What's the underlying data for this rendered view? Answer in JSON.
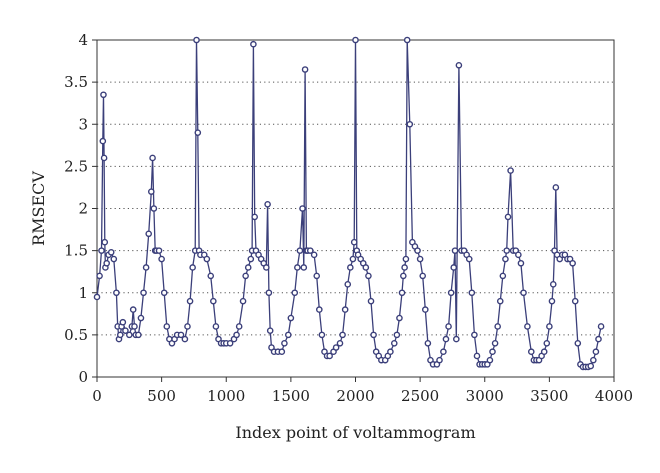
{
  "chart_data": {
    "type": "line",
    "title": "",
    "xlabel": "Index point of voltammogram",
    "ylabel": "RMSECV",
    "xlim": [
      0,
      4000
    ],
    "ylim": [
      0,
      4
    ],
    "xticks": [
      0,
      500,
      1000,
      1500,
      2000,
      2500,
      3000,
      3500,
      4000
    ],
    "yticks": [
      0,
      0.5,
      1,
      1.5,
      2,
      2.5,
      3,
      3.5,
      4
    ],
    "ytick_labels": [
      "0",
      "0.5",
      "1",
      "1.5",
      "2",
      "2.5",
      "3",
      "3.5",
      "4"
    ],
    "grid": "horizontal-dotted",
    "legend": "none",
    "markers": "open-circle",
    "series_color": "#3b3f7a",
    "series": [
      {
        "x": [
          0,
          20,
          35,
          45,
          50,
          55,
          60,
          65,
          75,
          90,
          110,
          130,
          150,
          160,
          170,
          180,
          190,
          200,
          220,
          250,
          270,
          280,
          290,
          300,
          320,
          340,
          360,
          380,
          400,
          420,
          430,
          440,
          450,
          460,
          480,
          500,
          520,
          540,
          560,
          580,
          600,
          620,
          650,
          680,
          700,
          720,
          740,
          760,
          770,
          780,
          790,
          800,
          830,
          850,
          880,
          900,
          920,
          940,
          960,
          980,
          1000,
          1030,
          1060,
          1080,
          1100,
          1130,
          1150,
          1170,
          1190,
          1200,
          1210,
          1220,
          1230,
          1250,
          1270,
          1290,
          1310,
          1320,
          1330,
          1340,
          1350,
          1370,
          1400,
          1430,
          1450,
          1480,
          1500,
          1530,
          1550,
          1570,
          1590,
          1600,
          1610,
          1620,
          1630,
          1650,
          1680,
          1700,
          1720,
          1740,
          1760,
          1780,
          1800,
          1830,
          1850,
          1880,
          1900,
          1920,
          1940,
          1960,
          1980,
          1990,
          2000,
          2010,
          2020,
          2040,
          2060,
          2080,
          2100,
          2120,
          2140,
          2160,
          2180,
          2200,
          2230,
          2250,
          2270,
          2300,
          2320,
          2340,
          2360,
          2370,
          2380,
          2390,
          2400,
          2420,
          2440,
          2460,
          2480,
          2500,
          2520,
          2540,
          2560,
          2580,
          2600,
          2630,
          2650,
          2680,
          2700,
          2720,
          2740,
          2760,
          2770,
          2780,
          2800,
          2820,
          2840,
          2860,
          2880,
          2900,
          2920,
          2940,
          2960,
          2980,
          3000,
          3020,
          3040,
          3060,
          3080,
          3100,
          3120,
          3140,
          3160,
          3170,
          3180,
          3200,
          3220,
          3240,
          3260,
          3280,
          3300,
          3330,
          3360,
          3380,
          3400,
          3420,
          3440,
          3460,
          3480,
          3500,
          3520,
          3530,
          3540,
          3550,
          3560,
          3580,
          3600,
          3620,
          3640,
          3660,
          3680,
          3700,
          3720,
          3740,
          3760,
          3780,
          3800,
          3820,
          3840,
          3860,
          3880,
          3900
        ],
        "y": [
          0.95,
          1.2,
          1.5,
          2.8,
          3.35,
          2.6,
          1.6,
          1.3,
          1.35,
          1.45,
          1.48,
          1.4,
          1.0,
          0.6,
          0.45,
          0.5,
          0.6,
          0.65,
          0.55,
          0.5,
          0.6,
          0.8,
          0.6,
          0.5,
          0.5,
          0.7,
          1.0,
          1.3,
          1.7,
          2.2,
          2.6,
          2.0,
          1.5,
          1.5,
          1.5,
          1.4,
          1.0,
          0.6,
          0.45,
          0.4,
          0.45,
          0.5,
          0.5,
          0.45,
          0.6,
          0.9,
          1.3,
          1.5,
          4.0,
          2.9,
          1.5,
          1.45,
          1.45,
          1.4,
          1.2,
          0.9,
          0.6,
          0.45,
          0.4,
          0.4,
          0.4,
          0.4,
          0.45,
          0.5,
          0.6,
          0.9,
          1.2,
          1.3,
          1.4,
          1.5,
          3.95,
          1.9,
          1.5,
          1.45,
          1.4,
          1.35,
          1.3,
          2.05,
          1.0,
          0.55,
          0.35,
          0.3,
          0.3,
          0.3,
          0.4,
          0.5,
          0.7,
          1.0,
          1.3,
          1.5,
          2.0,
          1.3,
          3.65,
          1.5,
          1.5,
          1.5,
          1.45,
          1.2,
          0.8,
          0.5,
          0.3,
          0.25,
          0.25,
          0.3,
          0.35,
          0.4,
          0.5,
          0.8,
          1.1,
          1.3,
          1.4,
          1.6,
          4.0,
          1.5,
          1.45,
          1.4,
          1.35,
          1.3,
          1.2,
          0.9,
          0.5,
          0.3,
          0.25,
          0.2,
          0.2,
          0.25,
          0.3,
          0.4,
          0.5,
          0.7,
          1.0,
          1.2,
          1.3,
          1.4,
          4.0,
          3.0,
          1.6,
          1.55,
          1.5,
          1.4,
          1.2,
          0.8,
          0.4,
          0.2,
          0.15,
          0.15,
          0.2,
          0.3,
          0.45,
          0.6,
          1.0,
          1.3,
          1.5,
          0.45,
          3.7,
          1.5,
          1.5,
          1.45,
          1.4,
          1.0,
          0.5,
          0.25,
          0.15,
          0.15,
          0.15,
          0.15,
          0.2,
          0.3,
          0.4,
          0.6,
          0.9,
          1.2,
          1.4,
          1.5,
          1.9,
          2.45,
          1.5,
          1.5,
          1.45,
          1.35,
          1.0,
          0.6,
          0.3,
          0.2,
          0.2,
          0.2,
          0.25,
          0.3,
          0.4,
          0.6,
          0.9,
          1.1,
          1.5,
          2.25,
          1.45,
          1.4,
          1.45,
          1.45,
          1.4,
          1.4,
          1.35,
          0.9,
          0.4,
          0.15,
          0.12,
          0.12,
          0.12,
          0.13,
          0.2,
          0.3,
          0.45,
          0.6
        ]
      }
    ]
  }
}
